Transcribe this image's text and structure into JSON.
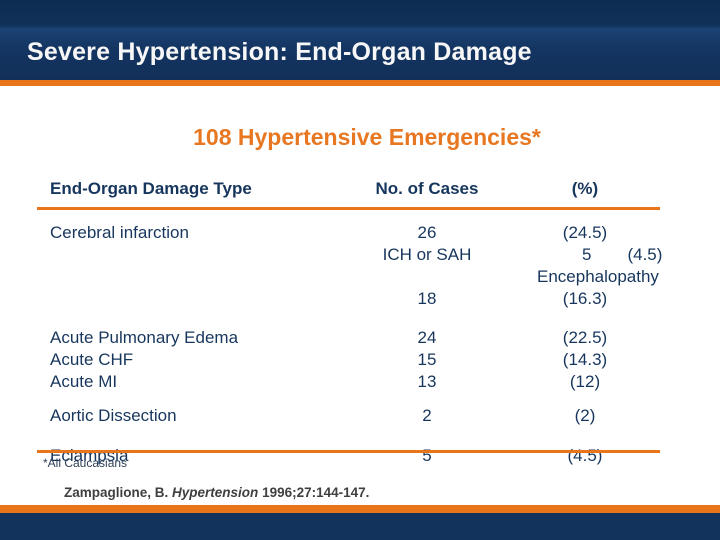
{
  "slide": {
    "title": "Severe Hypertension: End-Organ Damage",
    "subtitle": "108 Hypertensive Emergencies*"
  },
  "table": {
    "headers": {
      "type": "End-Organ Damage Type",
      "cases": "No. of Cases",
      "pct": "(%)"
    },
    "rows": [
      {
        "types": [
          "Cerebral infarction"
        ],
        "cases": [
          "26",
          "ICH or SAH",
          "18"
        ],
        "pct": [
          "(24.5)",
          "5",
          "(4.5)",
          "Encephalopathy",
          "(16.3)"
        ]
      },
      {
        "types": [
          "Acute Pulmonary Edema",
          "Acute CHF",
          "Acute MI"
        ],
        "cases": [
          "24",
          "15",
          "13"
        ],
        "pct": [
          "(22.5)",
          "(14.3)",
          "(12)"
        ]
      },
      {
        "types": [
          "Aortic Dissection"
        ],
        "cases": [
          "2"
        ],
        "pct": [
          "(2)"
        ]
      },
      {
        "types": [
          "Eclampsia"
        ],
        "cases": [
          "5"
        ],
        "pct": [
          "(4.5)"
        ]
      }
    ]
  },
  "footnote": "*All Caucasians",
  "citation": {
    "authors": "Zampaglione, B.",
    "journal": "Hypertension",
    "ref": "1996;27:144-147."
  },
  "colors": {
    "header_navy": "#12335c",
    "accent_orange": "#e8751a",
    "subtitle_orange": "#e87722",
    "table_text_navy": "#17365d",
    "title_text": "#f7f7f7"
  }
}
